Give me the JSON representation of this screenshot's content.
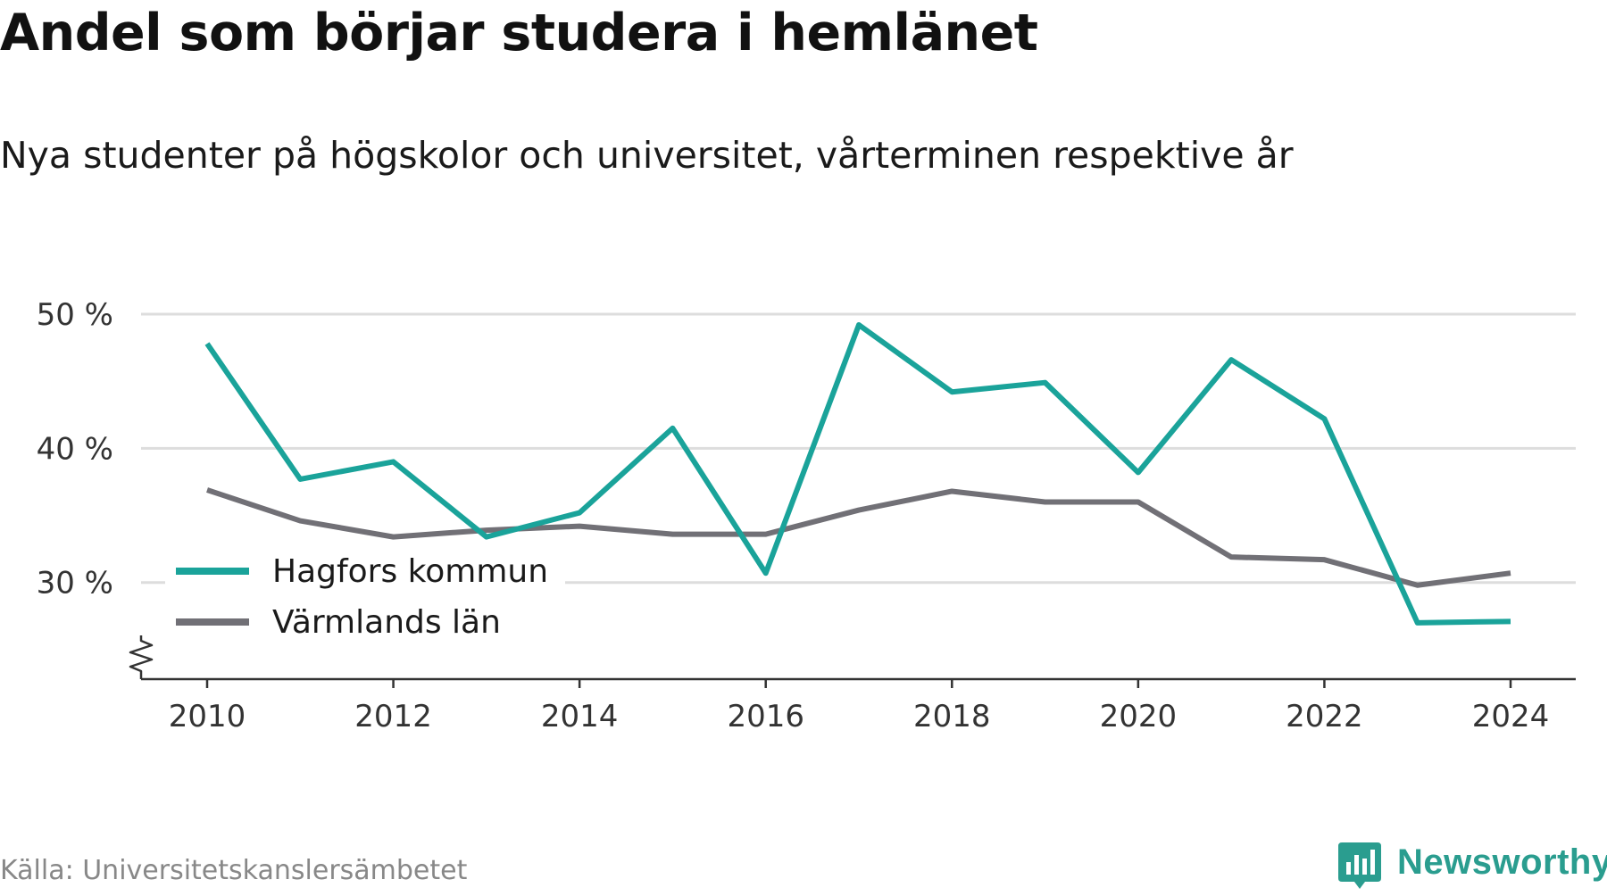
{
  "title": "Andel som börjar studera i hemlänet",
  "subtitle": "Nya studenter på högskolor och universitet, vårterminen respektive år",
  "source": "Källa: Universitetskanslersämbetet",
  "brand": "Newsworthy",
  "colors": {
    "hagfors": "#1aa39a",
    "varmland": "#717076",
    "grid": "#dddddd",
    "axis": "#333333",
    "brand": "#2a9d8f"
  },
  "chart_data": {
    "type": "line",
    "x": [
      2010,
      2011,
      2012,
      2013,
      2014,
      2015,
      2016,
      2017,
      2018,
      2019,
      2020,
      2021,
      2022,
      2023,
      2024
    ],
    "series": [
      {
        "name": "Hagfors kommun",
        "values": [
          47.8,
          37.7,
          39.0,
          33.4,
          35.2,
          41.5,
          30.7,
          49.2,
          44.2,
          44.9,
          38.2,
          46.6,
          42.2,
          27.0,
          27.1
        ]
      },
      {
        "name": "Värmlands län",
        "values": [
          36.9,
          34.6,
          33.4,
          33.9,
          34.2,
          33.6,
          33.6,
          35.4,
          36.8,
          36.0,
          36.0,
          31.9,
          31.7,
          29.8,
          30.7
        ]
      }
    ],
    "xticks": [
      2010,
      2012,
      2014,
      2016,
      2018,
      2020,
      2022,
      2024
    ],
    "yticks": [
      30,
      40,
      50
    ],
    "ytick_labels": [
      "30 %",
      "40 %",
      "50 %"
    ],
    "ylim": [
      22.8,
      50
    ],
    "y_axis_break": true,
    "grid": true,
    "legend_position": "bottom-left"
  }
}
